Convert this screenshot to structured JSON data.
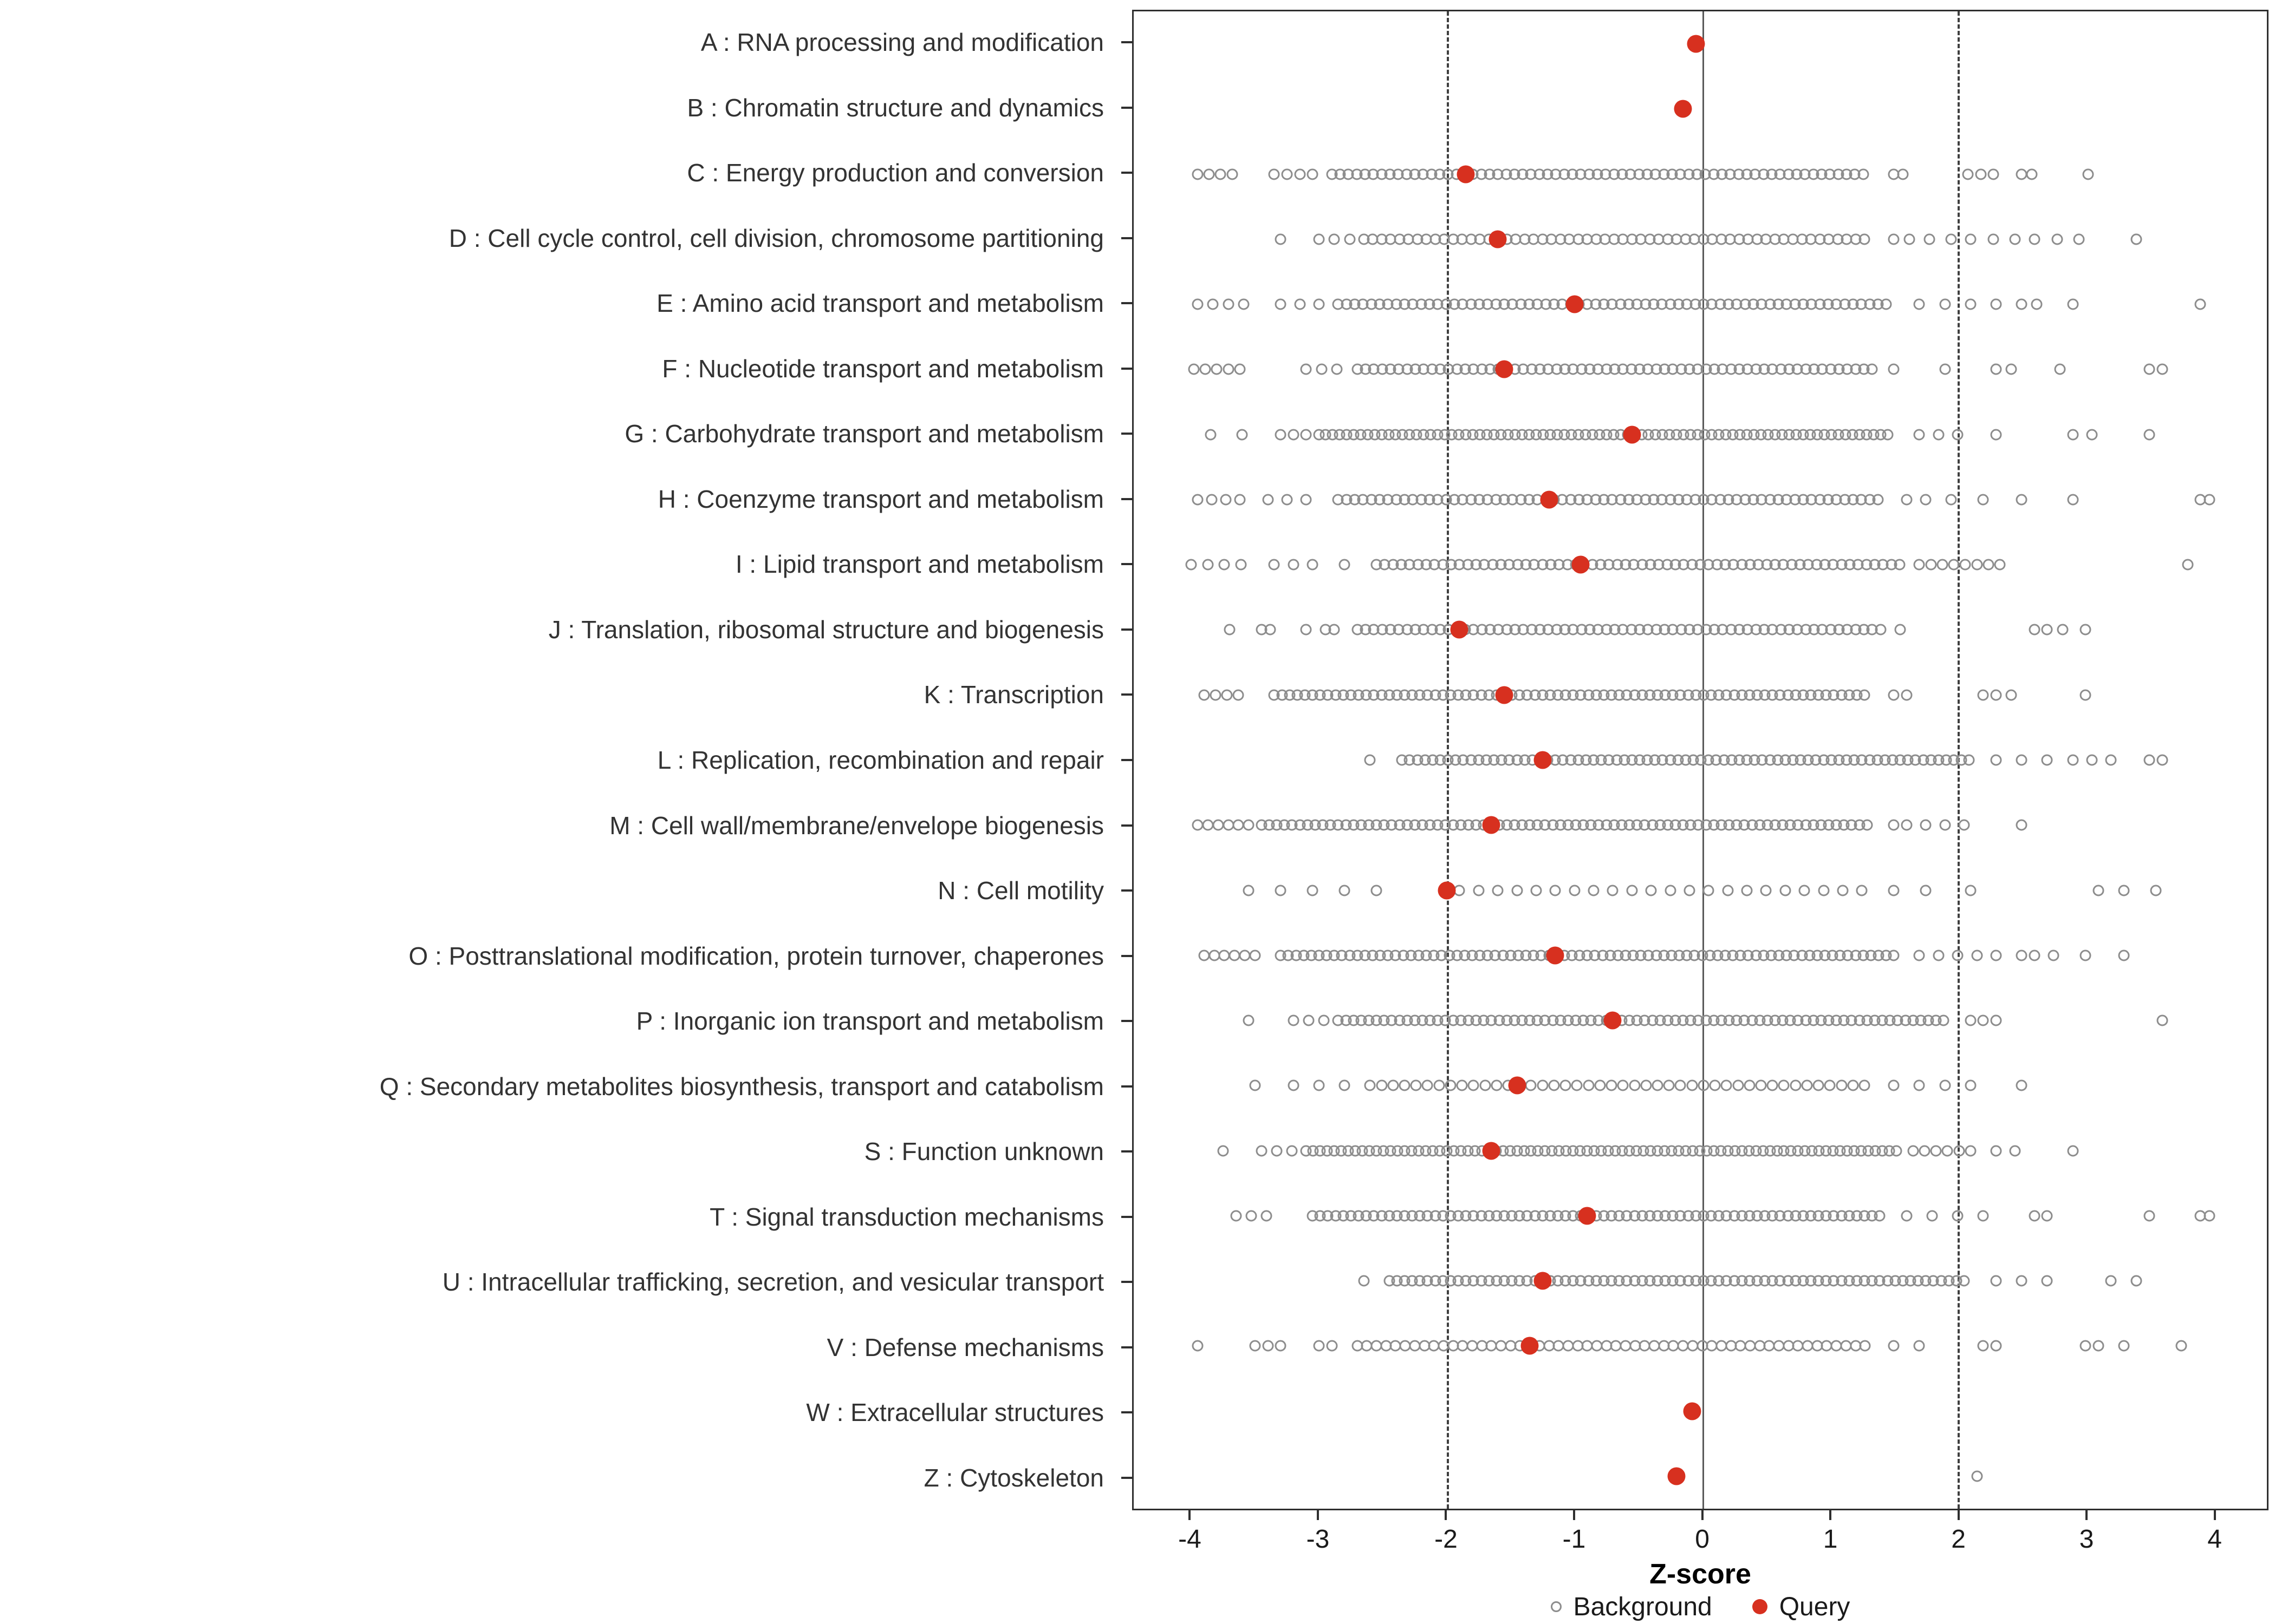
{
  "colors": {
    "query_fill": "#d7301f",
    "background_stroke": "#8d8d8d",
    "panel_border": "#2f2f2f",
    "zero_line": "#5a5a5a",
    "dash_line": "#3f3f3f",
    "axis_color": "#2f2f2f",
    "tick_label_color": "#1a1a1a",
    "category_label_color": "#333333"
  },
  "chart_data": {
    "type": "scatter",
    "title": "",
    "xlabel": "Z-score",
    "ylabel": "",
    "xlim": [
      -4.45,
      4.42
    ],
    "x_ticks": [
      -4,
      -3,
      -2,
      -1,
      0,
      1,
      2,
      3,
      4
    ],
    "reference_lines": {
      "solid": [
        0
      ],
      "dashed": [
        -2,
        2
      ]
    },
    "legend_position": "bottom",
    "series_legend": [
      "Background",
      "Query"
    ],
    "categories": [
      {
        "label": "A : RNA processing and modification",
        "query_z": -0.05,
        "background_dense_ranges": [],
        "background_points": []
      },
      {
        "label": "B : Chromatin structure and dynamics",
        "query_z": -0.15,
        "background_dense_ranges": [],
        "background_points": []
      },
      {
        "label": "C : Energy production and conversion",
        "query_z": -1.85,
        "background_dense_ranges": [
          [
            -3.95,
            -3.6,
            0.09
          ],
          [
            -3.35,
            -3.05,
            0.1
          ],
          [
            -2.9,
            1.32,
            0.065
          ]
        ],
        "background_points": [
          1.5,
          1.57,
          2.08,
          2.18,
          2.28,
          2.5,
          2.58,
          3.02
        ]
      },
      {
        "label": "D : Cell cycle control, cell division, chromosome partitioning",
        "query_z": -1.6,
        "background_dense_ranges": [
          [
            -3.0,
            -2.75,
            0.12
          ],
          [
            -2.65,
            1.3,
            0.07
          ]
        ],
        "background_points": [
          -3.3,
          1.5,
          1.62,
          1.78,
          1.95,
          2.1,
          2.28,
          2.45,
          2.6,
          2.78,
          2.95,
          3.4
        ]
      },
      {
        "label": "E : Amino acid transport and metabolism",
        "query_z": -1.0,
        "background_dense_ranges": [
          [
            -3.95,
            -3.55,
            0.12
          ],
          [
            -3.3,
            -3.0,
            0.15
          ],
          [
            -2.85,
            1.5,
            0.065
          ]
        ],
        "background_points": [
          1.7,
          1.9,
          2.1,
          2.3,
          2.5,
          2.62,
          2.9,
          3.9
        ]
      },
      {
        "label": "F : Nucleotide transport and metabolism",
        "query_z": -1.55,
        "background_dense_ranges": [
          [
            -3.98,
            -3.55,
            0.09
          ],
          [
            -3.1,
            -2.85,
            0.12
          ],
          [
            -2.7,
            1.35,
            0.065
          ]
        ],
        "background_points": [
          1.5,
          1.9,
          2.3,
          2.42,
          2.8,
          3.5,
          3.6
        ]
      },
      {
        "label": "G : Carbohydrate transport and metabolism",
        "query_z": -0.55,
        "background_dense_ranges": [
          [
            -3.3,
            -3.0,
            0.1
          ],
          [
            -2.95,
            1.5,
            0.055
          ]
        ],
        "background_points": [
          -3.85,
          -3.6,
          1.7,
          1.85,
          2.0,
          2.3,
          2.9,
          3.05,
          3.5
        ]
      },
      {
        "label": "H : Coenzyme transport and metabolism",
        "query_z": -1.2,
        "background_dense_ranges": [
          [
            -3.95,
            -3.6,
            0.11
          ],
          [
            -3.4,
            -3.1,
            0.15
          ],
          [
            -2.85,
            1.4,
            0.065
          ]
        ],
        "background_points": [
          1.6,
          1.75,
          1.95,
          2.2,
          2.5,
          2.9,
          3.9,
          3.97
        ]
      },
      {
        "label": "I : Lipid transport and metabolism",
        "query_z": -0.95,
        "background_dense_ranges": [
          [
            -4.0,
            -3.6,
            0.13
          ],
          [
            -3.35,
            -3.05,
            0.15
          ],
          [
            -2.55,
            1.6,
            0.065
          ],
          [
            1.7,
            2.4,
            0.09
          ]
        ],
        "background_points": [
          -2.8,
          3.8
        ]
      },
      {
        "label": "J : Translation, ribosomal structure and biogenesis",
        "query_z": -1.9,
        "background_dense_ranges": [
          [
            -2.7,
            1.4,
            0.065
          ]
        ],
        "background_points": [
          -3.7,
          -3.45,
          -3.38,
          -3.1,
          -2.95,
          -2.88,
          1.55,
          2.6,
          2.7,
          2.82,
          3.0
        ]
      },
      {
        "label": "K : Transcription",
        "query_z": -1.55,
        "background_dense_ranges": [
          [
            -3.9,
            -3.55,
            0.09
          ],
          [
            -3.35,
            1.3,
            0.06
          ]
        ],
        "background_points": [
          1.5,
          1.6,
          2.2,
          2.3,
          2.42,
          3.0
        ]
      },
      {
        "label": "L : Replication, recombination and repair",
        "query_z": -1.25,
        "background_dense_ranges": [
          [
            -2.35,
            2.1,
            0.06
          ]
        ],
        "background_points": [
          -2.6,
          2.3,
          2.5,
          2.7,
          2.9,
          3.05,
          3.2,
          3.5,
          3.6
        ]
      },
      {
        "label": "M : Cell wall/membrane/envelope biogenesis",
        "query_z": -1.65,
        "background_dense_ranges": [
          [
            -3.95,
            -3.55,
            0.08
          ],
          [
            -3.45,
            1.3,
            0.06
          ]
        ],
        "background_points": [
          1.5,
          1.6,
          1.75,
          1.9,
          2.05,
          2.5
        ]
      },
      {
        "label": "N : Cell motility",
        "query_z": -2.0,
        "background_dense_ranges": [
          [
            -1.9,
            1.25,
            0.15
          ]
        ],
        "background_points": [
          -3.55,
          -3.3,
          -3.05,
          -2.8,
          -2.55,
          1.5,
          1.75,
          2.1,
          3.1,
          3.3,
          3.55
        ]
      },
      {
        "label": "O : Posttranslational modification, protein turnover, chaperones",
        "query_z": -1.15,
        "background_dense_ranges": [
          [
            -3.9,
            -3.5,
            0.08
          ],
          [
            -3.3,
            1.5,
            0.06
          ]
        ],
        "background_points": [
          1.7,
          1.85,
          2.0,
          2.15,
          2.3,
          2.5,
          2.6,
          2.75,
          3.0,
          3.3
        ]
      },
      {
        "label": "P : Inorganic ion transport and metabolism",
        "query_z": -0.7,
        "background_dense_ranges": [
          [
            -3.2,
            -2.95,
            0.12
          ],
          [
            -2.85,
            1.9,
            0.06
          ]
        ],
        "background_points": [
          -3.55,
          2.1,
          2.2,
          2.3,
          3.6
        ]
      },
      {
        "label": "Q : Secondary metabolites biosynthesis, transport and catabolism",
        "query_z": -1.45,
        "background_dense_ranges": [
          [
            -2.6,
            1.3,
            0.09
          ]
        ],
        "background_points": [
          -3.5,
          -3.2,
          -3.0,
          -2.8,
          1.5,
          1.7,
          1.9,
          2.1,
          2.5
        ]
      },
      {
        "label": "S : Function unknown",
        "query_z": -1.65,
        "background_dense_ranges": [
          [
            -3.45,
            -3.2,
            0.12
          ],
          [
            -3.1,
            1.55,
            0.055
          ],
          [
            1.65,
            2.1,
            0.09
          ]
        ],
        "background_points": [
          -3.75,
          2.3,
          2.45,
          2.9
        ]
      },
      {
        "label": "T : Signal transduction mechanisms",
        "query_z": -0.9,
        "background_dense_ranges": [
          [
            -3.65,
            -3.3,
            0.12
          ],
          [
            -3.05,
            1.4,
            0.06
          ]
        ],
        "background_points": [
          1.6,
          1.8,
          2.0,
          2.2,
          2.6,
          2.7,
          3.5,
          3.9,
          3.97
        ]
      },
      {
        "label": "U : Intracellular trafficking, secretion, and vesicular transport",
        "query_z": -1.25,
        "background_dense_ranges": [
          [
            -2.45,
            2.1,
            0.06
          ]
        ],
        "background_points": [
          -2.65,
          2.3,
          2.5,
          2.7,
          3.2,
          3.4
        ]
      },
      {
        "label": "V : Defense mechanisms",
        "query_z": -1.35,
        "background_dense_ranges": [
          [
            -2.7,
            1.3,
            0.075
          ]
        ],
        "background_points": [
          -3.95,
          -3.5,
          -3.4,
          -3.3,
          -3.0,
          -2.9,
          1.5,
          1.7,
          2.2,
          2.3,
          3.0,
          3.1,
          3.3,
          3.75
        ]
      },
      {
        "label": "W : Extracellular structures",
        "query_z": -0.08,
        "background_dense_ranges": [],
        "background_points": []
      },
      {
        "label": "Z : Cytoskeleton",
        "query_z": -0.2,
        "background_dense_ranges": [],
        "background_points": [
          2.15
        ]
      }
    ]
  }
}
